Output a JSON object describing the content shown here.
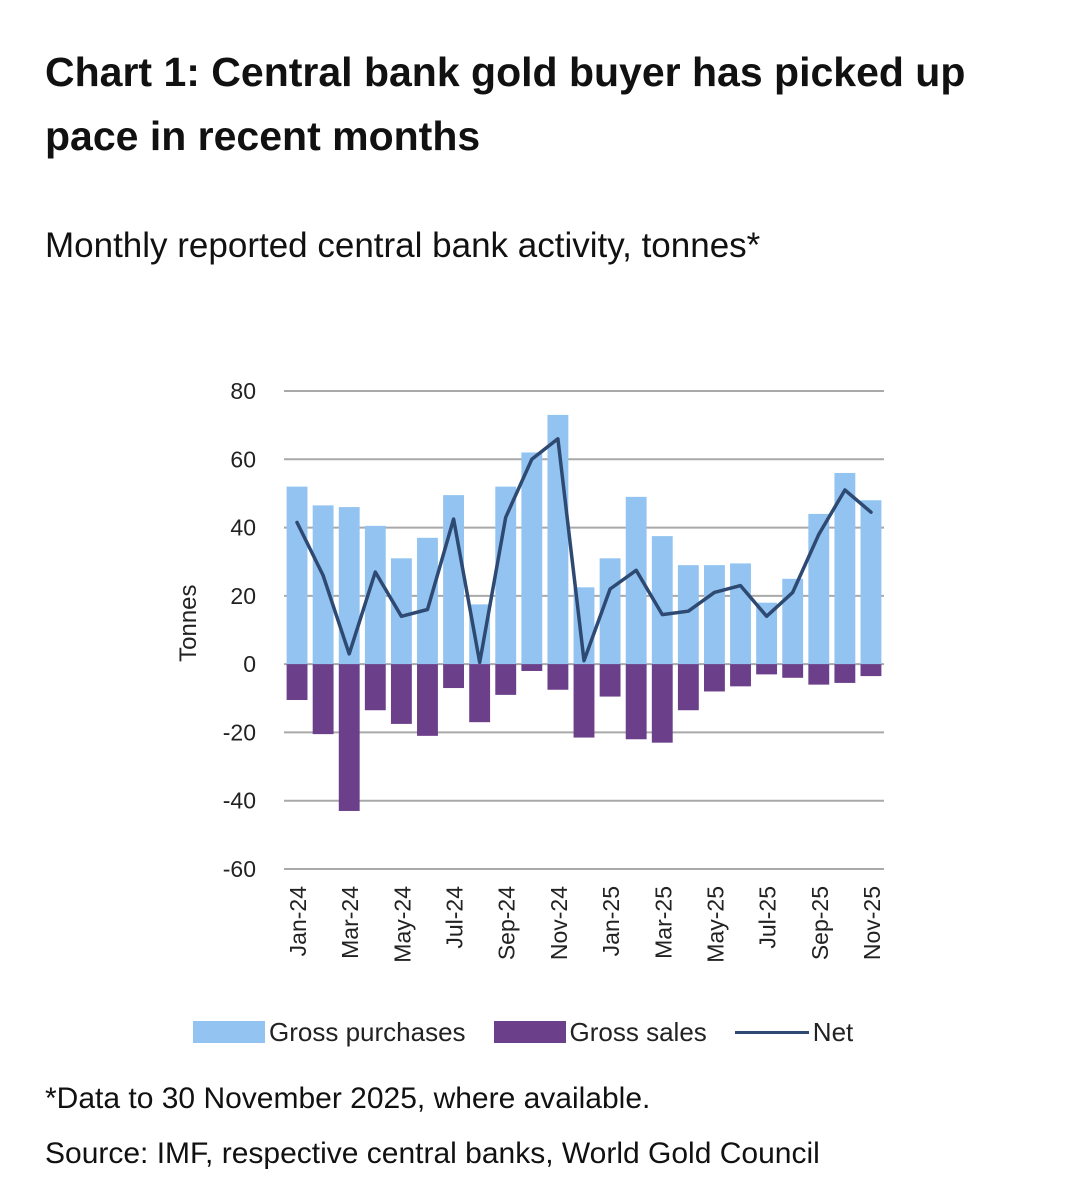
{
  "title": "Chart 1: Central bank gold buyer has picked up pace in recent months",
  "subtitle": "Monthly reported central bank activity, tonnes*",
  "footnote": "*Data to 30 November 2025, where available.",
  "source": "Source: IMF, respective central banks, World Gold Council",
  "legend": {
    "purchases_label": "Gross purchases",
    "sales_label": "Gross sales",
    "net_label": "Net"
  },
  "colors": {
    "purchases": "#93c4f1",
    "sales": "#6b3f8a",
    "net": "#2e4a72",
    "grid": "#a9a9a9"
  },
  "chart_data": {
    "type": "bar",
    "title": "Chart 1: Central bank gold buyer has picked up pace in recent months",
    "subtitle": "Monthly reported central bank activity, tonnes*",
    "xlabel": "",
    "ylabel": "Tonnes",
    "ylim": [
      -60,
      80
    ],
    "yticks": [
      80,
      60,
      40,
      20,
      0,
      -20,
      -40,
      -60
    ],
    "grid": true,
    "legend_position": "bottom",
    "categories": [
      "Jan-24",
      "Feb-24",
      "Mar-24",
      "Apr-24",
      "May-24",
      "Jun-24",
      "Jul-24",
      "Aug-24",
      "Sep-24",
      "Oct-24",
      "Nov-24",
      "Dec-24",
      "Jan-25",
      "Feb-25",
      "Mar-25",
      "Apr-25",
      "May-25",
      "Jun-25",
      "Jul-25",
      "Aug-25",
      "Sep-25",
      "Oct-25",
      "Nov-25"
    ],
    "tick_labels": [
      "Jan-24",
      "Mar-24",
      "May-24",
      "Jul-24",
      "Sep-24",
      "Nov-24",
      "Jan-25",
      "Mar-25",
      "May-25",
      "Jul-25",
      "Sep-25",
      "Nov-25"
    ],
    "series": [
      {
        "name": "Gross purchases",
        "type": "bar",
        "values": [
          52,
          46.5,
          46,
          40.5,
          31,
          37,
          49.5,
          17.5,
          52,
          62,
          73,
          22.5,
          31,
          49,
          37.5,
          29,
          29,
          29.5,
          18,
          25,
          44,
          56,
          48
        ]
      },
      {
        "name": "Gross sales",
        "type": "bar",
        "values": [
          -10.5,
          -20.5,
          -43,
          -13.5,
          -17.5,
          -21,
          -7,
          -17,
          -9,
          -2,
          -7.5,
          -21.5,
          -9.5,
          -22,
          -23,
          -13.5,
          -8,
          -6.5,
          -3,
          -4,
          -6,
          -5.5,
          -3.5
        ]
      },
      {
        "name": "Net",
        "type": "line",
        "values": [
          41.5,
          26,
          3,
          27,
          14,
          16,
          42.5,
          0.5,
          43,
          60,
          66,
          1,
          22,
          27.5,
          14.5,
          15.5,
          21,
          23,
          14,
          21,
          38,
          51,
          44.5
        ]
      }
    ]
  }
}
